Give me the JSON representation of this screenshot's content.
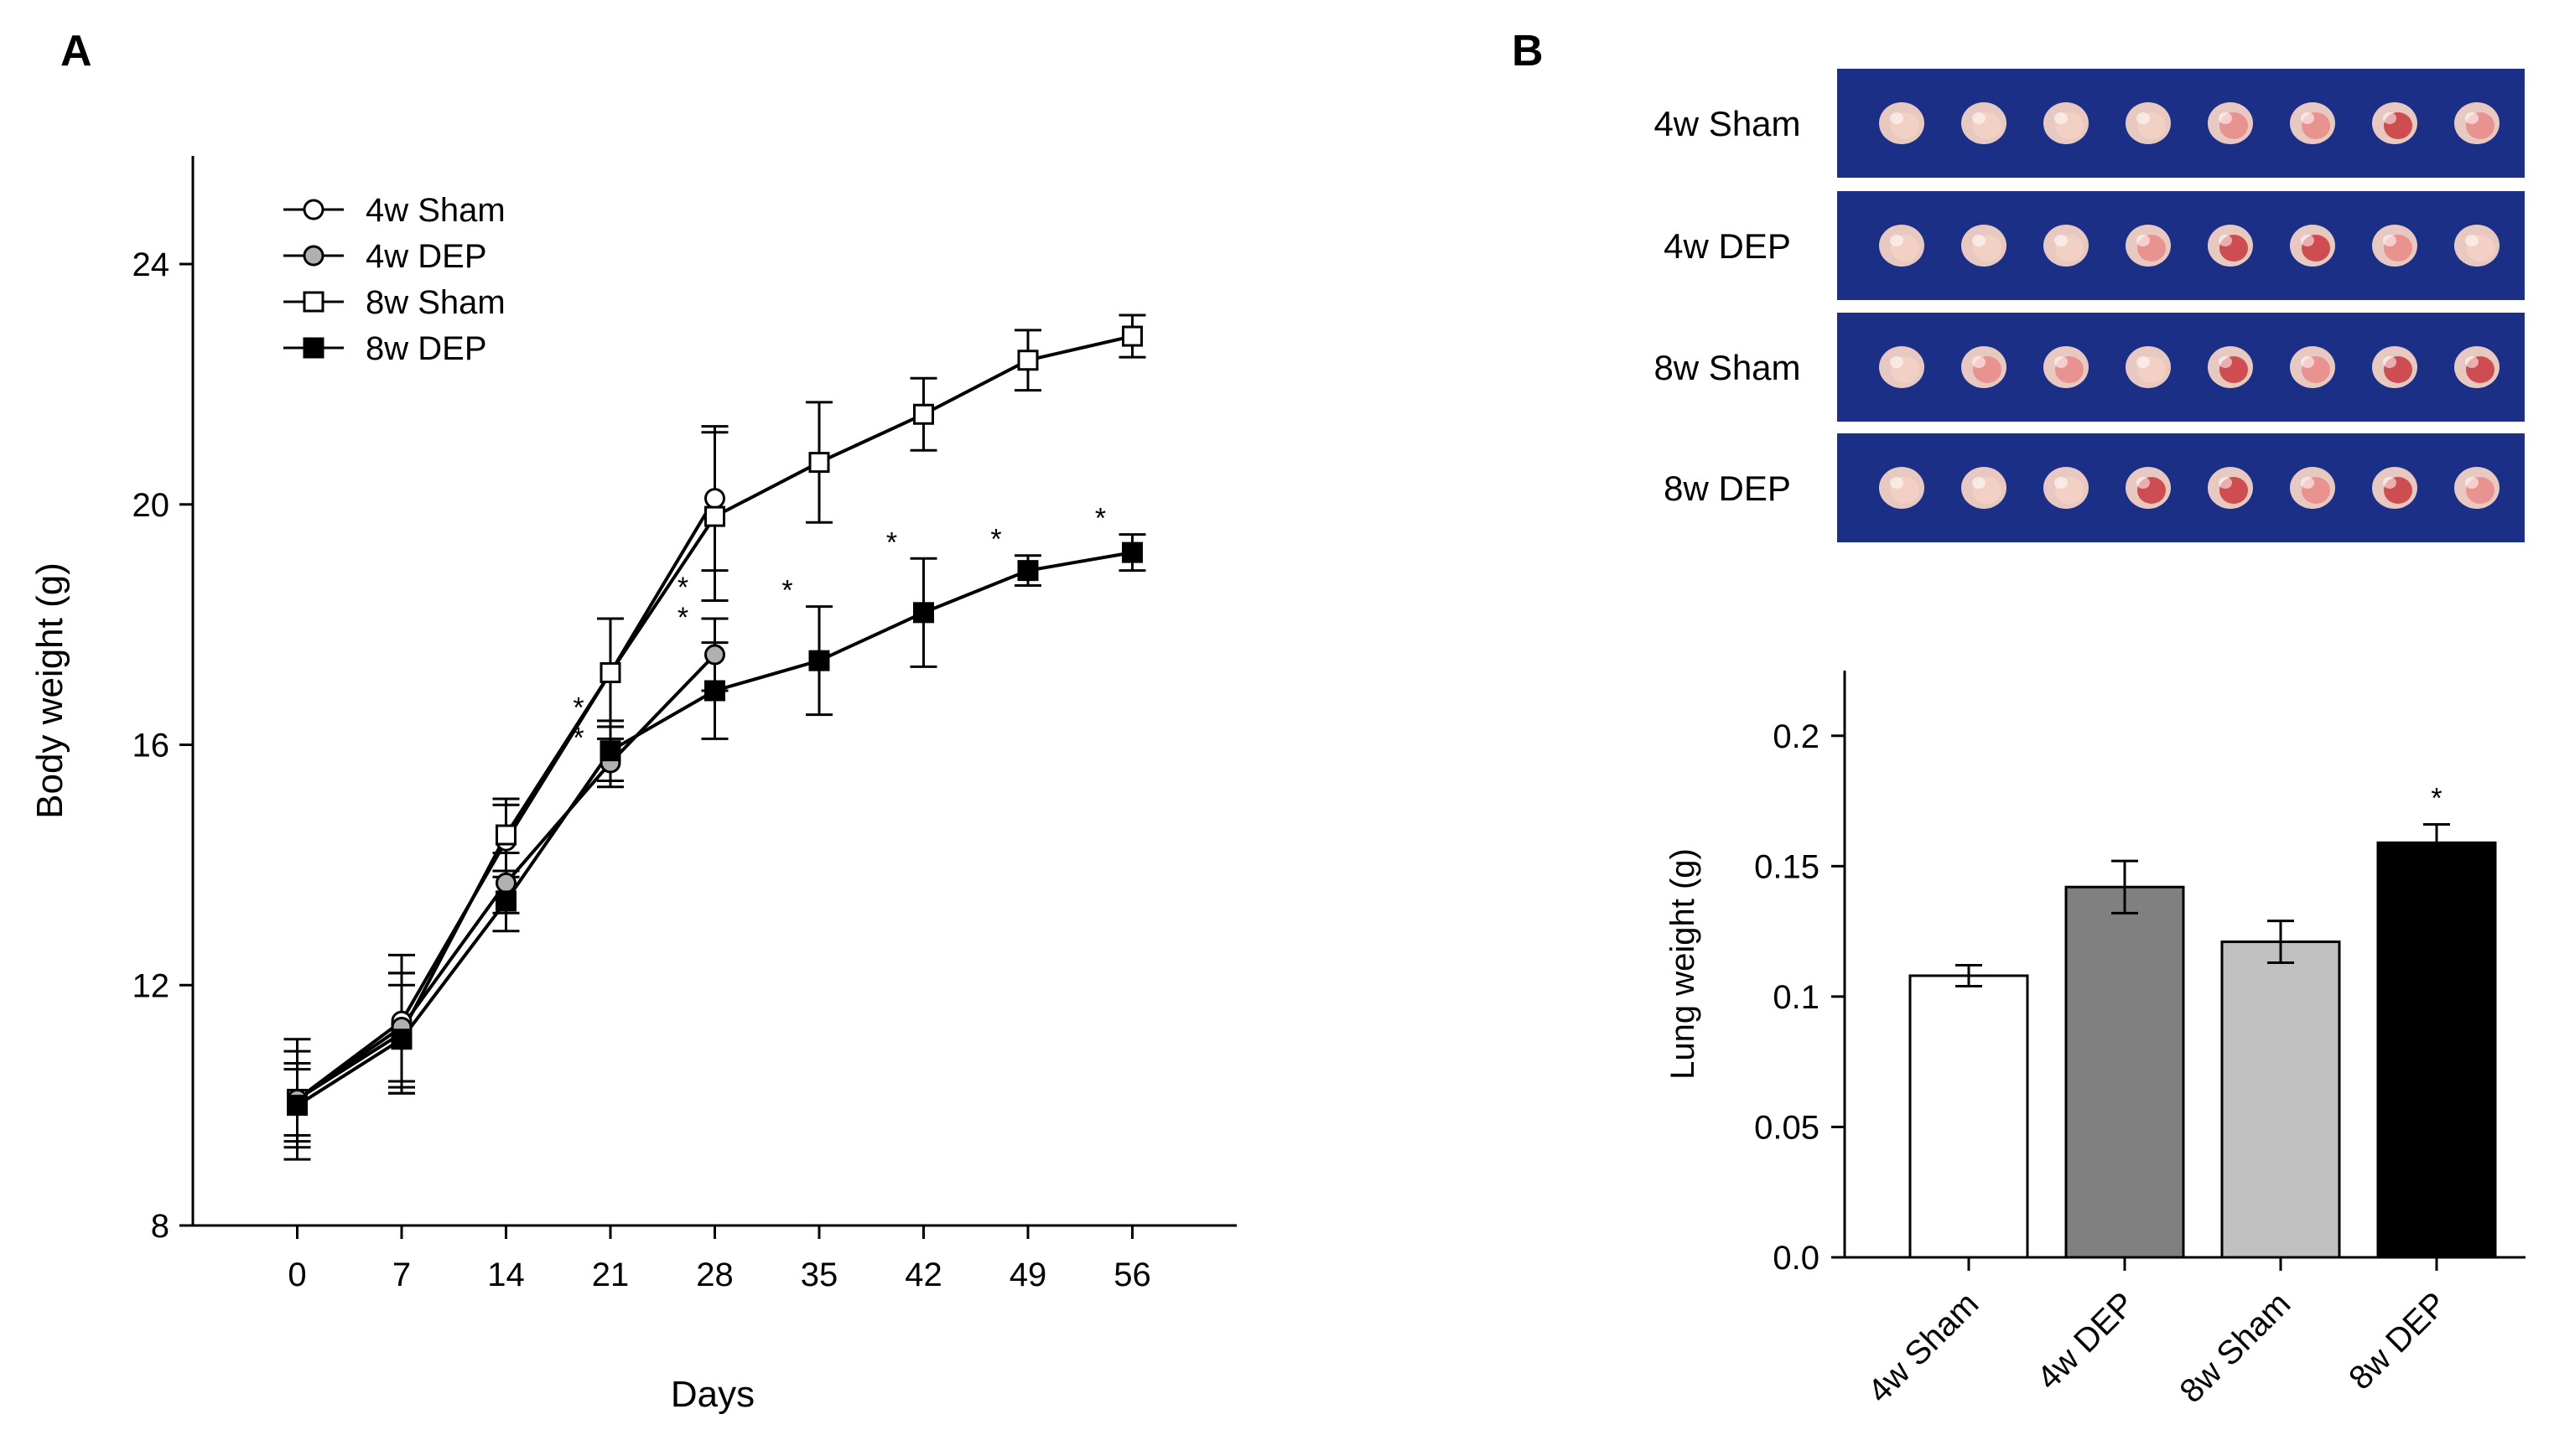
{
  "panel_a_label": "A",
  "panel_b_label": "B",
  "photo_rows": [
    "4w Sham",
    "4w DEP",
    "8w Sham",
    "8w DEP"
  ],
  "colors": {
    "photo_bg": "#1b2f86",
    "tissue_light": "#f3d2c4",
    "tissue_pink": "#e98a88",
    "tissue_red": "#c8373c",
    "bar_4w_sham": "#ffffff",
    "bar_4w_dep": "#808080",
    "bar_8w_sham": "#c0c0c0",
    "bar_8w_dep": "#000000",
    "marker_gray": "#b0b0b0"
  },
  "chart_data": [
    {
      "type": "line",
      "panel": "A",
      "xlabel": "Days",
      "ylabel": "Body weight (g)",
      "x": [
        0,
        7,
        14,
        21,
        28,
        35,
        42,
        49,
        56
      ],
      "xticks": [
        "0",
        "7",
        "14",
        "21",
        "28",
        "35",
        "42",
        "49",
        "56"
      ],
      "yticks": [
        "8",
        "12",
        "16",
        "20",
        "24"
      ],
      "xlim": [
        -7,
        63
      ],
      "ylim": [
        8,
        25.8
      ],
      "legend_position": "top-left",
      "series": [
        {
          "name": "4w Sham",
          "marker": "circle-open",
          "x": [
            0,
            7,
            14,
            21,
            28
          ],
          "values": [
            10.1,
            11.4,
            14.4,
            17.2,
            20.1
          ],
          "errors": [
            1.0,
            1.1,
            0.6,
            0.9,
            1.2
          ]
        },
        {
          "name": "4w DEP",
          "marker": "circle-gray",
          "x": [
            0,
            7,
            14,
            21,
            28
          ],
          "values": [
            10.1,
            11.3,
            13.7,
            15.7,
            17.5
          ],
          "errors": [
            0.8,
            0.9,
            0.5,
            0.4,
            0.6
          ]
        },
        {
          "name": "8w Sham",
          "marker": "square-open",
          "x": [
            0,
            7,
            14,
            21,
            28,
            35,
            42,
            49,
            56
          ],
          "values": [
            10.1,
            11.2,
            14.5,
            17.2,
            19.8,
            20.7,
            21.5,
            22.4,
            22.8
          ],
          "errors": [
            0.6,
            1.0,
            0.6,
            0.9,
            1.4,
            1.0,
            0.6,
            0.5,
            0.35
          ]
        },
        {
          "name": "8w DEP",
          "marker": "square-filled",
          "x": [
            0,
            7,
            14,
            21,
            28,
            35,
            42,
            49,
            56
          ],
          "values": [
            10.0,
            11.1,
            13.4,
            15.9,
            16.9,
            17.4,
            18.2,
            18.9,
            19.2
          ],
          "errors": [
            0.6,
            0.9,
            0.5,
            0.5,
            0.8,
            0.9,
            0.9,
            0.25,
            0.3
          ]
        }
      ],
      "significance": [
        {
          "x": 21,
          "label": "*\n*"
        },
        {
          "x": 28,
          "label": "*\n*"
        },
        {
          "x": 35,
          "label": "*"
        },
        {
          "x": 42,
          "label": "*"
        },
        {
          "x": 49,
          "label": "*"
        },
        {
          "x": 56,
          "label": "*"
        }
      ]
    },
    {
      "type": "bar",
      "panel": "B",
      "categories": [
        "4w Sham",
        "4w DEP",
        "8w Sham",
        "8w DEP"
      ],
      "values": [
        0.108,
        0.142,
        0.121,
        0.159
      ],
      "errors": [
        0.004,
        0.01,
        0.008,
        0.007
      ],
      "yticks": [
        "0.0",
        "0.05",
        "0.1",
        "0.15",
        "0.2"
      ],
      "ylabel": "Lung weight (g)",
      "ylim": [
        0,
        0.225
      ],
      "significance": [
        {
          "category": "8w DEP",
          "label": "*"
        }
      ]
    }
  ]
}
